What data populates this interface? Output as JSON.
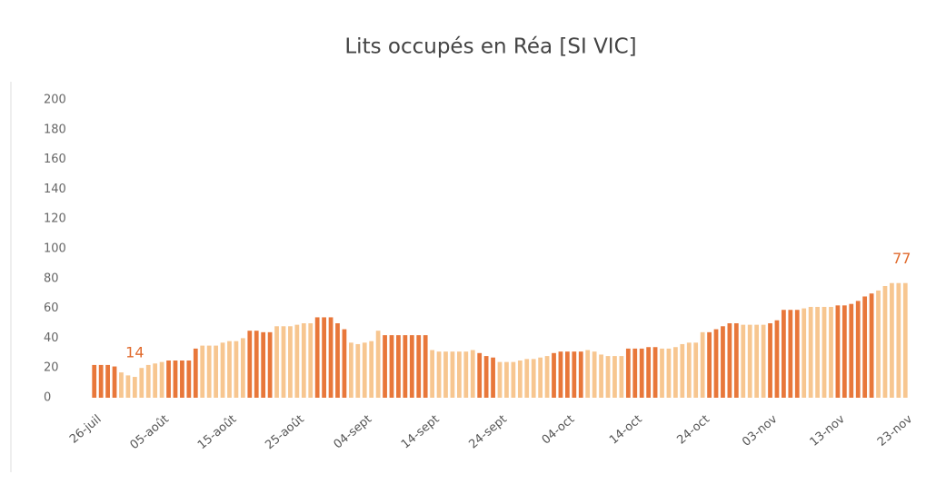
{
  "chart_data": {
    "type": "bar",
    "title": "Lits occupés en Réa [SI VIC]",
    "categories": [
      "26-juil",
      null,
      null,
      null,
      null,
      null,
      null,
      null,
      null,
      null,
      "05-août",
      null,
      null,
      null,
      null,
      null,
      null,
      null,
      null,
      null,
      "15-août",
      null,
      null,
      null,
      null,
      null,
      null,
      null,
      null,
      null,
      "25-août",
      null,
      null,
      null,
      null,
      null,
      null,
      null,
      null,
      null,
      "04-sept",
      null,
      null,
      null,
      null,
      null,
      null,
      null,
      null,
      null,
      "14-sept",
      null,
      null,
      null,
      null,
      null,
      null,
      null,
      null,
      null,
      "24-sept",
      null,
      null,
      null,
      null,
      null,
      null,
      null,
      null,
      null,
      "04-oct",
      null,
      null,
      null,
      null,
      null,
      null,
      null,
      null,
      null,
      "14-oct",
      null,
      null,
      null,
      null,
      null,
      null,
      null,
      null,
      null,
      "24-oct",
      null,
      null,
      null,
      null,
      null,
      null,
      null,
      null,
      null,
      "03-nov",
      null,
      null,
      null,
      null,
      null,
      null,
      null,
      null,
      null,
      "13-nov",
      null,
      null,
      null,
      null,
      null,
      null,
      null,
      null,
      null,
      "23-nov"
    ],
    "values": [
      22,
      22,
      22,
      21,
      17,
      15,
      14,
      20,
      22,
      23,
      24,
      25,
      25,
      25,
      25,
      33,
      35,
      35,
      35,
      37,
      38,
      38,
      40,
      45,
      45,
      44,
      44,
      48,
      48,
      48,
      49,
      50,
      50,
      54,
      54,
      54,
      50,
      46,
      37,
      36,
      37,
      38,
      45,
      42,
      42,
      42,
      42,
      42,
      42,
      42,
      32,
      31,
      31,
      31,
      31,
      31,
      32,
      30,
      28,
      27,
      24,
      24,
      24,
      25,
      26,
      26,
      27,
      28,
      30,
      31,
      31,
      31,
      31,
      32,
      31,
      29,
      28,
      28,
      28,
      33,
      33,
      33,
      34,
      34,
      33,
      33,
      34,
      36,
      37,
      37,
      44,
      44,
      46,
      48,
      50,
      50,
      49,
      49,
      49,
      49,
      50,
      52,
      59,
      59,
      59,
      60,
      61,
      61,
      61,
      61,
      62,
      62,
      63,
      65,
      68,
      70,
      72,
      75,
      77,
      77,
      77
    ],
    "value_labels": [
      null,
      null,
      null,
      null,
      null,
      null,
      "14",
      null,
      null,
      null,
      null,
      null,
      null,
      null,
      null,
      null,
      null,
      null,
      null,
      null,
      null,
      null,
      null,
      null,
      null,
      null,
      null,
      null,
      null,
      null,
      null,
      null,
      null,
      null,
      null,
      null,
      null,
      null,
      null,
      null,
      null,
      null,
      null,
      null,
      null,
      null,
      null,
      null,
      null,
      null,
      null,
      null,
      null,
      null,
      null,
      null,
      null,
      null,
      null,
      null,
      null,
      null,
      null,
      null,
      null,
      null,
      null,
      null,
      null,
      null,
      null,
      null,
      null,
      null,
      null,
      null,
      null,
      null,
      null,
      null,
      null,
      null,
      null,
      null,
      null,
      null,
      null,
      null,
      null,
      null,
      null,
      null,
      null,
      null,
      null,
      null,
      null,
      null,
      null,
      null,
      null,
      null,
      null,
      null,
      null,
      null,
      null,
      null,
      null,
      null,
      null,
      null,
      null,
      null,
      null,
      null,
      null,
      null,
      null,
      null,
      "77"
    ],
    "colors": [
      "#e8773a",
      "#e8773a",
      "#e8773a",
      "#e8773a",
      "#f7c690",
      "#f7c690",
      "#f7c690",
      "#f7c690",
      "#f7c690",
      "#f7c690",
      "#f7c690",
      "#e8773a",
      "#e8773a",
      "#e8773a",
      "#e8773a",
      "#e8773a",
      "#f7c690",
      "#f7c690",
      "#f7c690",
      "#f7c690",
      "#f7c690",
      "#f7c690",
      "#f7c690",
      "#e8773a",
      "#e8773a",
      "#e8773a",
      "#e8773a",
      "#f7c690",
      "#f7c690",
      "#f7c690",
      "#f7c690",
      "#f7c690",
      "#f7c690",
      "#e8773a",
      "#e8773a",
      "#e8773a",
      "#e8773a",
      "#e8773a",
      "#f7c690",
      "#f7c690",
      "#f7c690",
      "#f7c690",
      "#f7c690",
      "#e8773a",
      "#e8773a",
      "#e8773a",
      "#e8773a",
      "#e8773a",
      "#e8773a",
      "#e8773a",
      "#f7c690",
      "#f7c690",
      "#f7c690",
      "#f7c690",
      "#f7c690",
      "#f7c690",
      "#f7c690",
      "#e8773a",
      "#e8773a",
      "#e8773a",
      "#f7c690",
      "#f7c690",
      "#f7c690",
      "#f7c690",
      "#f7c690",
      "#f7c690",
      "#f7c690",
      "#f7c690",
      "#e8773a",
      "#e8773a",
      "#e8773a",
      "#e8773a",
      "#e8773a",
      "#f7c690",
      "#f7c690",
      "#f7c690",
      "#f7c690",
      "#f7c690",
      "#f7c690",
      "#e8773a",
      "#e8773a",
      "#e8773a",
      "#e8773a",
      "#e8773a",
      "#f7c690",
      "#f7c690",
      "#f7c690",
      "#f7c690",
      "#f7c690",
      "#f7c690",
      "#f7c690",
      "#e8773a",
      "#e8773a",
      "#e8773a",
      "#e8773a",
      "#e8773a",
      "#f7c690",
      "#f7c690",
      "#f7c690",
      "#f7c690",
      "#e8773a",
      "#e8773a",
      "#e8773a",
      "#e8773a",
      "#e8773a",
      "#f7c690",
      "#f7c690",
      "#f7c690",
      "#f7c690",
      "#f7c690",
      "#e8773a",
      "#e8773a",
      "#e8773a",
      "#e8773a",
      "#e8773a",
      "#e8773a",
      "#f7c690",
      "#f7c690",
      "#f7c690",
      "#f7c690",
      "#f7c690"
    ],
    "label_color": "#e06a2c",
    "ylim": [
      0,
      200
    ],
    "yticks": [
      0,
      20,
      40,
      60,
      80,
      100,
      120,
      140,
      160,
      180,
      200
    ]
  }
}
